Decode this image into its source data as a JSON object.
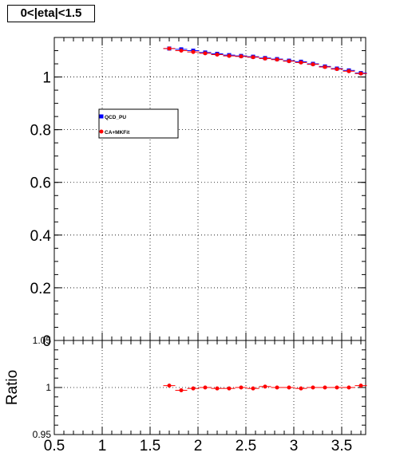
{
  "title": "0<|eta|<1.5",
  "chart_data": [
    {
      "type": "scatter",
      "xlim": [
        0.5,
        3.75
      ],
      "ylim": [
        0,
        1.15
      ],
      "grid": true,
      "yticks": [
        "0",
        "0.2",
        "0.4",
        "0.6",
        "0.8",
        "1"
      ],
      "legend": {
        "placement": "upper-left"
      },
      "series": [
        {
          "name": "QCD_PU",
          "color": "#0000ff",
          "marker": "square",
          "x": [
            1.7,
            1.825,
            1.95,
            2.075,
            2.2,
            2.325,
            2.45,
            2.575,
            2.7,
            2.825,
            2.95,
            3.075,
            3.2,
            3.325,
            3.45,
            3.575,
            3.7
          ],
          "y": [
            1.108,
            1.105,
            1.1,
            1.093,
            1.088,
            1.083,
            1.08,
            1.077,
            1.072,
            1.068,
            1.062,
            1.058,
            1.05,
            1.04,
            1.032,
            1.025,
            1.015
          ]
        },
        {
          "name": "CA+MKFit",
          "color": "#ff0000",
          "marker": "circle",
          "x": [
            1.7,
            1.825,
            1.95,
            2.075,
            2.2,
            2.325,
            2.45,
            2.575,
            2.7,
            2.825,
            2.95,
            3.075,
            3.2,
            3.325,
            3.45,
            3.575,
            3.7
          ],
          "y": [
            1.108,
            1.1,
            1.095,
            1.09,
            1.085,
            1.08,
            1.078,
            1.075,
            1.07,
            1.066,
            1.06,
            1.055,
            1.048,
            1.038,
            1.03,
            1.022,
            1.013
          ]
        }
      ]
    },
    {
      "type": "scatter",
      "ylabel": "Ratio",
      "xlim": [
        0.5,
        3.75
      ],
      "ylim": [
        0.95,
        1.05
      ],
      "grid": true,
      "xticks": [
        "0.5",
        "1",
        "1.5",
        "2",
        "2.5",
        "3",
        "3.5"
      ],
      "yticks": [
        "0.95",
        "1",
        "1.05"
      ],
      "series": [
        {
          "color": "#ff0000",
          "marker": "circle",
          "x": [
            1.7,
            1.825,
            1.95,
            2.075,
            2.2,
            2.325,
            2.45,
            2.575,
            2.7,
            2.825,
            2.95,
            3.075,
            3.2,
            3.325,
            3.45,
            3.575,
            3.7
          ],
          "y": [
            1.002,
            0.997,
            0.999,
            1.0,
            0.999,
            0.999,
            1.0,
            0.999,
            1.001,
            1.0,
            1.0,
            0.999,
            1.0,
            1.0,
            1.0,
            1.0,
            1.002
          ]
        }
      ]
    }
  ]
}
